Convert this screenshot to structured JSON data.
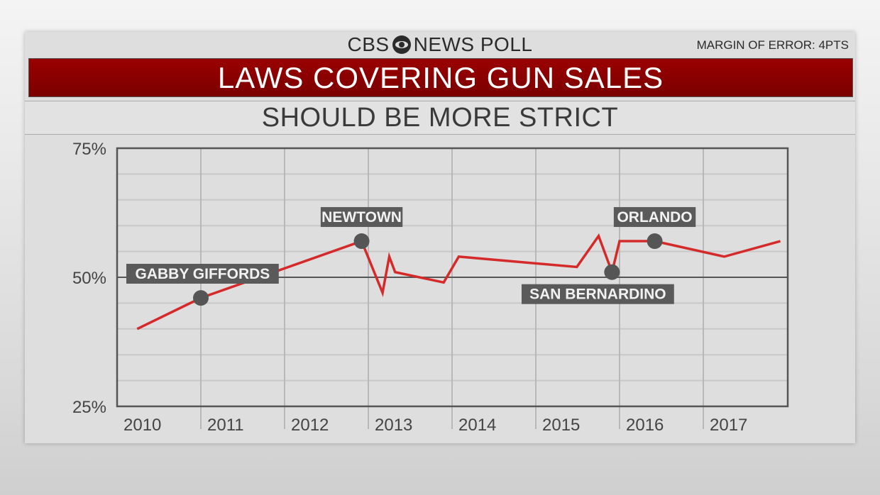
{
  "header": {
    "brand_left": "CBS",
    "brand_right": "NEWS POLL",
    "margin_of_error": "MARGIN OF ERROR: 4PTS",
    "title": "LAWS COVERING GUN SALES",
    "subtitle": "SHOULD BE MORE STRICT"
  },
  "colors": {
    "line": "#d42a2a",
    "title_band": "#8b0000",
    "marker": "#555555",
    "label_bg": "#5a5a5a"
  },
  "chart_data": {
    "type": "line",
    "title": "LAWS COVERING GUN SALES",
    "subtitle": "SHOULD BE MORE STRICT",
    "xlim": [
      2010,
      2018
    ],
    "ylim": [
      25,
      75
    ],
    "x_ticks": [
      "2010",
      "2011",
      "2012",
      "2013",
      "2014",
      "2015",
      "2016",
      "2017"
    ],
    "y_ticks": [
      "25%",
      "50%",
      "75%"
    ],
    "grid": true,
    "series": [
      {
        "x": [
          2010.24,
          2011.0,
          2012.92,
          2013.17,
          2013.25,
          2013.32,
          2013.9,
          2014.08,
          2015.49,
          2015.75,
          2015.91,
          2016.0,
          2016.42,
          2017.25,
          2017.92
        ],
        "y": [
          40,
          46,
          57,
          47,
          54,
          51,
          49,
          54,
          52,
          58,
          51,
          57,
          57,
          54,
          57
        ]
      }
    ],
    "annotations": [
      {
        "label": "GABBY GIFFORDS",
        "x": 2011.0,
        "y": 46,
        "pos": "above"
      },
      {
        "label": "NEWTOWN",
        "x": 2012.92,
        "y": 57,
        "pos": "above"
      },
      {
        "label": "SAN BERNARDINO",
        "x": 2015.91,
        "y": 51,
        "pos": "below"
      },
      {
        "label": "ORLANDO",
        "x": 2016.42,
        "y": 57,
        "pos": "above"
      }
    ]
  }
}
